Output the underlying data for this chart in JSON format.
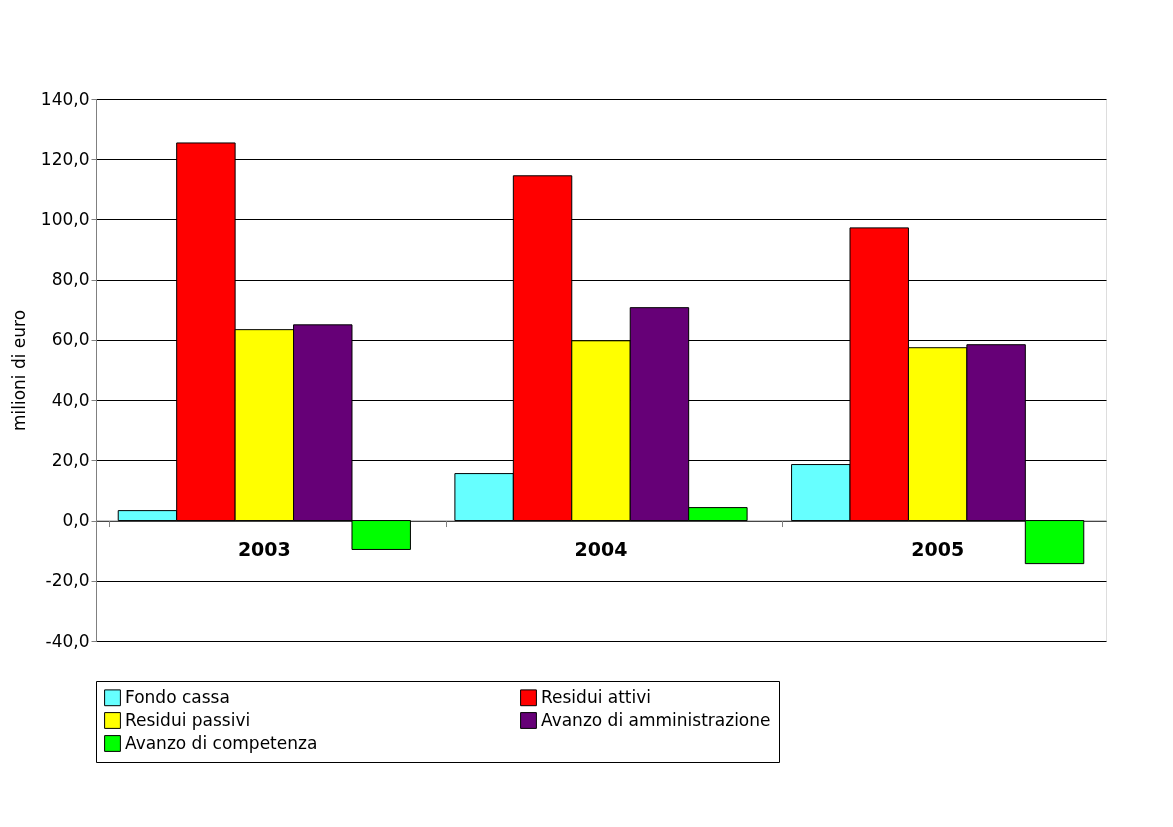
{
  "chart_data": {
    "type": "bar",
    "ylabel": "milioni di euro",
    "categories": [
      "2003",
      "2004",
      "2005"
    ],
    "series": [
      {
        "name": "Fondo cassa",
        "color": "#66ffff",
        "values": [
          3.3,
          15.6,
          18.6
        ]
      },
      {
        "name": "Residui attivi",
        "color": "#ff0000",
        "values": [
          125.4,
          114.5,
          97.2
        ]
      },
      {
        "name": "Residui  passivi",
        "color": "#ffff00",
        "values": [
          63.4,
          59.7,
          57.4
        ]
      },
      {
        "name": "Avanzo di amministrazione",
        "color": "#660077",
        "values": [
          65.0,
          70.7,
          58.4
        ]
      },
      {
        "name": "Avanzo di competenza",
        "color": "#00ff00",
        "values": [
          -9.6,
          4.3,
          -14.3
        ]
      }
    ],
    "ylim": [
      -40,
      140
    ],
    "yticks": [
      {
        "value": -40,
        "label": "-40,0"
      },
      {
        "value": -20,
        "label": "-20,0"
      },
      {
        "value": 0,
        "label": "0,0"
      },
      {
        "value": 20,
        "label": "20,0"
      },
      {
        "value": 40,
        "label": "40,0"
      },
      {
        "value": 60,
        "label": "60,0"
      },
      {
        "value": 80,
        "label": "80,0"
      },
      {
        "value": 100,
        "label": "100,0"
      },
      {
        "value": 120,
        "label": "120,0"
      },
      {
        "value": 140,
        "label": "140,0"
      }
    ],
    "grid": "y",
    "legend": "bottom"
  }
}
